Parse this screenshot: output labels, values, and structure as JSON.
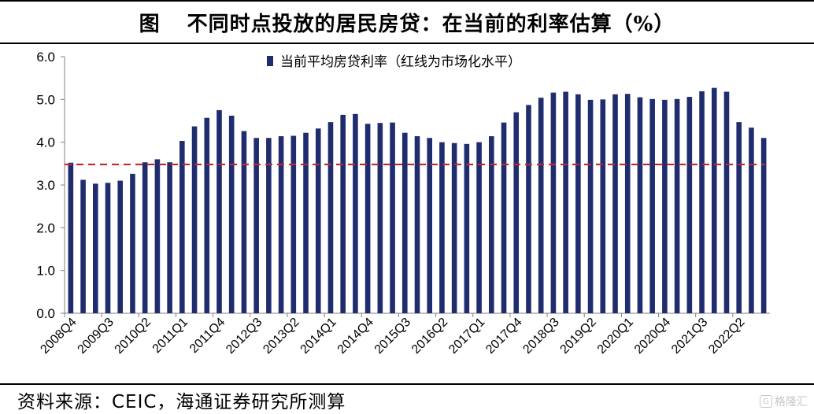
{
  "figure": {
    "label": "图",
    "title": "不同时点投放的居民房贷：在当前的利率估算（%）"
  },
  "chart_data": {
    "type": "bar",
    "title": "不同时点投放的居民房贷：在当前的利率估算（%）",
    "xlabel": "",
    "ylabel": "",
    "ylim": [
      0,
      6
    ],
    "yticks": [
      "0.0",
      "1.0",
      "2.0",
      "3.0",
      "4.0",
      "5.0",
      "6.0"
    ],
    "grid": false,
    "legend_position": "top-center",
    "legend_label": "当前平均房贷利率（红线为市场化水平）",
    "bar_color": "#1f2d6e",
    "reference_line": {
      "value": 3.48,
      "color": "#c0282d",
      "style": "dashed"
    },
    "categories": [
      "2008Q4",
      "2009Q1",
      "2009Q2",
      "2009Q3",
      "2009Q4",
      "2010Q1",
      "2010Q2",
      "2010Q3",
      "2010Q4",
      "2011Q1",
      "2011Q2",
      "2011Q3",
      "2011Q4",
      "2012Q1",
      "2012Q2",
      "2012Q3",
      "2012Q4",
      "2013Q1",
      "2013Q2",
      "2013Q3",
      "2013Q4",
      "2014Q1",
      "2014Q2",
      "2014Q3",
      "2014Q4",
      "2015Q1",
      "2015Q2",
      "2015Q3",
      "2015Q4",
      "2016Q1",
      "2016Q2",
      "2016Q3",
      "2016Q4",
      "2017Q1",
      "2017Q2",
      "2017Q3",
      "2017Q4",
      "2018Q1",
      "2018Q2",
      "2018Q3",
      "2018Q4",
      "2019Q1",
      "2019Q2",
      "2019Q3",
      "2019Q4",
      "2020Q1",
      "2020Q2",
      "2020Q3",
      "2020Q4",
      "2021Q1",
      "2021Q2",
      "2021Q3",
      "2021Q4",
      "2022Q1",
      "2022Q2",
      "2022Q3",
      "2022Q4"
    ],
    "tick_labels": [
      "2008Q4",
      "2009Q3",
      "2010Q2",
      "2011Q1",
      "2011Q4",
      "2012Q3",
      "2013Q2",
      "2014Q1",
      "2014Q4",
      "2015Q3",
      "2016Q2",
      "2017Q1",
      "2017Q4",
      "2018Q3",
      "2019Q2",
      "2020Q1",
      "2020Q4",
      "2021Q3",
      "2022Q2"
    ],
    "series": [
      {
        "values": [
          3.52,
          3.12,
          3.03,
          3.05,
          3.1,
          3.26,
          3.53,
          3.6,
          3.53,
          4.03,
          4.37,
          4.57,
          4.75,
          4.62,
          4.26,
          4.1,
          4.1,
          4.14,
          4.15,
          4.22,
          4.32,
          4.47,
          4.64,
          4.66,
          4.43,
          4.45,
          4.46,
          4.22,
          4.14,
          4.1,
          4.0,
          3.98,
          3.96,
          4.0,
          4.14,
          4.46,
          4.7,
          4.87,
          5.04,
          5.16,
          5.18,
          5.12,
          4.99,
          5.0,
          5.12,
          5.13,
          5.05,
          5.01,
          4.99,
          5.01,
          5.06,
          5.19,
          5.27,
          5.18,
          4.47,
          4.34,
          4.1
        ]
      }
    ]
  },
  "footer": {
    "source": "资料来源：CEIC，海通证券研究所测算",
    "watermark": "格隆汇"
  }
}
